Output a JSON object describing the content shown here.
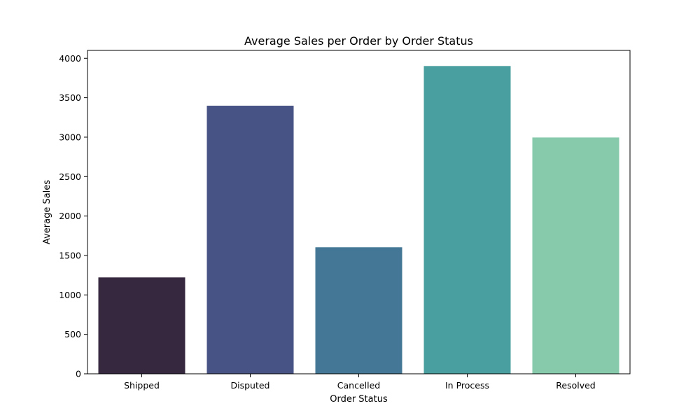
{
  "chart_data": {
    "type": "bar",
    "title": "Average Sales per Order by Order Status",
    "xlabel": "Order Status",
    "ylabel": "Average Sales",
    "categories": [
      "Shipped",
      "Disputed",
      "Cancelled",
      "In Process",
      "Resolved"
    ],
    "values": [
      1222,
      3399,
      1604,
      3902,
      2996
    ],
    "colors": [
      "#35283f",
      "#485385",
      "#437795",
      "#499f9f",
      "#86c9ab"
    ],
    "ylim": [
      0,
      4100
    ],
    "yticks": [
      0,
      500,
      1000,
      1500,
      2000,
      2500,
      3000,
      3500,
      4000
    ],
    "grid": false,
    "legend": "none"
  }
}
